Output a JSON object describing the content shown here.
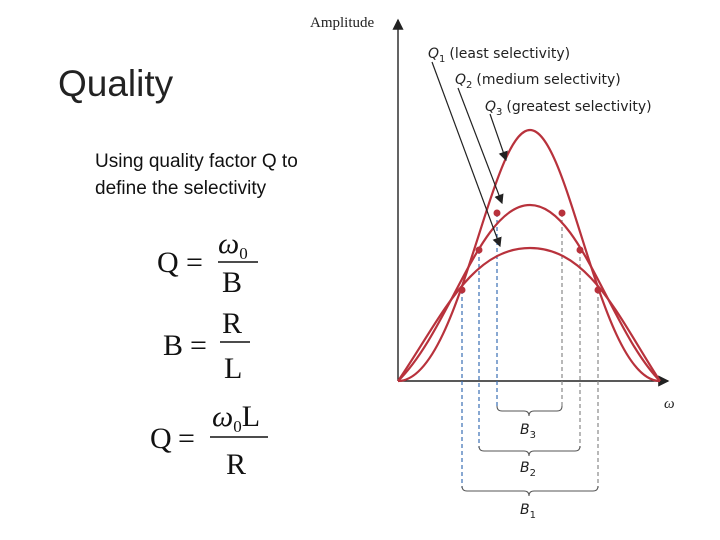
{
  "slide": {
    "title": "Quality",
    "text_lines": [
      "Using quality factor Q to",
      "define the selectivity"
    ],
    "formulas": [
      {
        "lhs": "Q",
        "eq": "=",
        "num": {
          "symbol": "ω",
          "sub": "0",
          "rest": ""
        },
        "den": "B"
      },
      {
        "lhs": "B",
        "eq": "=",
        "num": {
          "symbol": "R",
          "sub": "",
          "rest": ""
        },
        "den": "L"
      },
      {
        "lhs": "Q",
        "eq": "=",
        "num": {
          "symbol": "ω",
          "sub": "0",
          "rest": "L"
        },
        "den": "R"
      }
    ]
  },
  "figure": {
    "y_axis": "Amplitude",
    "x_axis": "ω",
    "curves": [
      {
        "symbol": "Q",
        "sub": "1",
        "desc": "(least selectivity)"
      },
      {
        "symbol": "Q",
        "sub": "2",
        "desc": "(medium selectivity)"
      },
      {
        "symbol": "Q",
        "sub": "3",
        "desc": "(greatest selectivity)"
      }
    ],
    "bandwidths": [
      {
        "symbol": "B",
        "sub": "3"
      },
      {
        "symbol": "B",
        "sub": "2"
      },
      {
        "symbol": "B",
        "sub": "1"
      }
    ]
  }
}
